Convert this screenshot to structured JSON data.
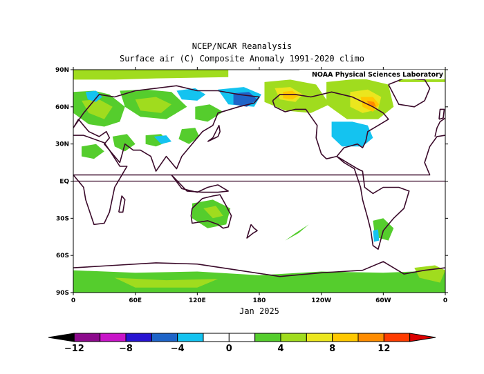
{
  "title_line1": "NCEP/NCAR Reanalysis",
  "title_line2": "Surface air (C) Composite Anomaly 1991-2020 climo",
  "credit": "NOAA Physical Sciences Laboratory",
  "time_label": "Jan 2025",
  "lat_ticks": [
    {
      "value": 90,
      "label": "90N"
    },
    {
      "value": 60,
      "label": "60N"
    },
    {
      "value": 30,
      "label": "30N"
    },
    {
      "value": 0,
      "label": "EQ"
    },
    {
      "value": -30,
      "label": "30S"
    },
    {
      "value": -60,
      "label": "60S"
    },
    {
      "value": -90,
      "label": "90S"
    }
  ],
  "lon_ticks": [
    {
      "value": 0,
      "label": "0"
    },
    {
      "value": 60,
      "label": "60E"
    },
    {
      "value": 120,
      "label": "120E"
    },
    {
      "value": 180,
      "label": "180"
    },
    {
      "value": 240,
      "label": "120W"
    },
    {
      "value": 300,
      "label": "60W"
    },
    {
      "value": 360,
      "label": "0"
    }
  ],
  "colorbar": {
    "labels": [
      {
        "value": -12,
        "label": "−12"
      },
      {
        "value": -8,
        "label": "−8"
      },
      {
        "value": -4,
        "label": "−4"
      },
      {
        "value": 0,
        "label": "0"
      },
      {
        "value": 4,
        "label": "4"
      },
      {
        "value": 8,
        "label": "8"
      },
      {
        "value": 12,
        "label": "12"
      }
    ],
    "bins": [
      {
        "from": -14,
        "to": -12,
        "color": "#000000"
      },
      {
        "from": -12,
        "to": -10,
        "color": "#8c0a8c"
      },
      {
        "from": -10,
        "to": -8,
        "color": "#c814c8"
      },
      {
        "from": -8,
        "to": -6,
        "color": "#2814d2"
      },
      {
        "from": -6,
        "to": -4,
        "color": "#1e64c8"
      },
      {
        "from": -4,
        "to": -2,
        "color": "#14c3f0"
      },
      {
        "from": -2,
        "to": 0,
        "color": "#ffffff"
      },
      {
        "from": 0,
        "to": 2,
        "color": "#ffffff"
      },
      {
        "from": 2,
        "to": 4,
        "color": "#55cd2d"
      },
      {
        "from": 4,
        "to": 6,
        "color": "#a0dc1e"
      },
      {
        "from": 6,
        "to": 8,
        "color": "#ebe61e"
      },
      {
        "from": 8,
        "to": 10,
        "color": "#ffc800"
      },
      {
        "from": 10,
        "to": 12,
        "color": "#ff8c00"
      },
      {
        "from": 12,
        "to": 14,
        "color": "#ff3c00"
      },
      {
        "from": 14,
        "to": 16,
        "color": "#dc0000"
      }
    ],
    "range": [
      -14,
      16
    ]
  },
  "anomaly_regions": [
    {
      "name": "arctic-band-europe",
      "lon": [
        0,
        40,
        80,
        150,
        150,
        80,
        40,
        0
      ],
      "lat": [
        90,
        90,
        90,
        90,
        84,
        83,
        82,
        82
      ],
      "value": 5
    },
    {
      "name": "arctic-band-west",
      "lon": [
        315,
        360,
        360,
        315
      ],
      "lat": [
        90,
        90,
        80,
        80
      ],
      "value": 5
    },
    {
      "name": "europe-warm",
      "lon": [
        0,
        20,
        35,
        50,
        45,
        30,
        15,
        0
      ],
      "lat": [
        72,
        73,
        70,
        60,
        48,
        44,
        46,
        55
      ],
      "value": 3
    },
    {
      "name": "europe-warm-core",
      "lon": [
        8,
        25,
        38,
        30,
        15
      ],
      "lat": [
        65,
        66,
        60,
        50,
        55
      ],
      "value": 5
    },
    {
      "name": "scandinavia-cold",
      "lon": [
        12,
        22,
        28,
        22,
        14
      ],
      "lat": [
        72,
        73,
        68,
        64,
        66
      ],
      "value": -3
    },
    {
      "name": "russia-warm",
      "lon": [
        45,
        70,
        95,
        110,
        90,
        65,
        50
      ],
      "lat": [
        73,
        74,
        72,
        60,
        50,
        52,
        60
      ],
      "value": 3
    },
    {
      "name": "russia-warm-core",
      "lon": [
        60,
        80,
        95,
        85,
        65
      ],
      "lat": [
        66,
        68,
        62,
        55,
        57
      ],
      "value": 5
    },
    {
      "name": "siberia-cold",
      "lon": [
        100,
        118,
        128,
        120,
        105
      ],
      "lat": [
        73,
        75,
        70,
        65,
        66
      ],
      "value": -3
    },
    {
      "name": "mideast-warm",
      "lon": [
        38,
        52,
        60,
        50,
        40
      ],
      "lat": [
        36,
        38,
        30,
        24,
        28
      ],
      "value": 3
    },
    {
      "name": "himalaya-warm",
      "lon": [
        70,
        85,
        92,
        80,
        70
      ],
      "lat": [
        37,
        38,
        32,
        28,
        30
      ],
      "value": 3
    },
    {
      "name": "tibet-cold",
      "lon": [
        78,
        90,
        95,
        85
      ],
      "lat": [
        36,
        37,
        32,
        30
      ],
      "value": -3
    },
    {
      "name": "china-warm",
      "lon": [
        105,
        118,
        122,
        112,
        102
      ],
      "lat": [
        42,
        43,
        36,
        30,
        34
      ],
      "value": 3
    },
    {
      "name": "chukotka-cold",
      "lon": [
        140,
        165,
        182,
        175,
        150
      ],
      "lat": [
        74,
        76,
        70,
        60,
        62
      ],
      "value": -3
    },
    {
      "name": "chukotka-cold-core",
      "lon": [
        155,
        170,
        178,
        168,
        155
      ],
      "lat": [
        71,
        72,
        66,
        60,
        62
      ],
      "value": -5
    },
    {
      "name": "kamchatka-warm",
      "lon": [
        118,
        132,
        145,
        130,
        118
      ],
      "lat": [
        60,
        62,
        56,
        48,
        50
      ],
      "value": 3
    },
    {
      "name": "alaska-warm",
      "lon": [
        185,
        210,
        235,
        248,
        230,
        205,
        185
      ],
      "lat": [
        80,
        82,
        78,
        62,
        55,
        57,
        64
      ],
      "value": 5
    },
    {
      "name": "alaska-warm-core",
      "lon": [
        195,
        210,
        222,
        215,
        200
      ],
      "lat": [
        75,
        76,
        70,
        64,
        66
      ],
      "value": 7
    },
    {
      "name": "alaska-hot-core",
      "lon": [
        203,
        212,
        218,
        212,
        203
      ],
      "lat": [
        72,
        73,
        69,
        66,
        67
      ],
      "value": 9
    },
    {
      "name": "canada-warm",
      "lon": [
        245,
        280,
        305,
        310,
        295,
        265,
        245
      ],
      "lat": [
        80,
        83,
        78,
        60,
        50,
        50,
        62
      ],
      "value": 5
    },
    {
      "name": "canada-warm-core",
      "lon": [
        268,
        285,
        298,
        295,
        280,
        268
      ],
      "lat": [
        72,
        74,
        68,
        58,
        55,
        60
      ],
      "value": 7
    },
    {
      "name": "hudson-hot",
      "lon": [
        278,
        290,
        296,
        290,
        280
      ],
      "lat": [
        68,
        68,
        62,
        56,
        60
      ],
      "value": 9
    },
    {
      "name": "hudson-hot-core",
      "lon": [
        284,
        291,
        293,
        287
      ],
      "lat": [
        65,
        64,
        60,
        61
      ],
      "value": 11
    },
    {
      "name": "us-cold",
      "lon": [
        250,
        270,
        285,
        290,
        280,
        260,
        250
      ],
      "lat": [
        48,
        48,
        45,
        35,
        28,
        28,
        36
      ],
      "value": -3
    },
    {
      "name": "africa-warm",
      "lon": [
        8,
        22,
        30,
        20,
        8
      ],
      "lat": [
        28,
        30,
        24,
        18,
        20
      ],
      "value": 3
    },
    {
      "name": "australia-warm",
      "lon": [
        115,
        135,
        152,
        148,
        130,
        115
      ],
      "lat": [
        -18,
        -15,
        -22,
        -35,
        -38,
        -30
      ],
      "value": 3
    },
    {
      "name": "australia-warm-core",
      "lon": [
        126,
        138,
        145,
        135
      ],
      "lat": [
        -22,
        -20,
        -28,
        -30
      ],
      "value": 5
    },
    {
      "name": "pacific-warm",
      "lon": [
        205,
        215,
        228,
        218
      ],
      "lat": [
        -48,
        -42,
        -35,
        -42
      ],
      "value": 3
    },
    {
      "name": "southamerica-warm",
      "lon": [
        290,
        300,
        310,
        305,
        292
      ],
      "lat": [
        -32,
        -30,
        -38,
        -48,
        -45
      ],
      "value": 3
    },
    {
      "name": "patagonia-cold",
      "lon": [
        290,
        295,
        296,
        291
      ],
      "lat": [
        -40,
        -39,
        -48,
        -49
      ],
      "value": -3
    },
    {
      "name": "antarctic-warm",
      "lon": [
        0,
        60,
        120,
        180,
        240,
        300,
        360,
        360,
        0
      ],
      "lat": [
        -72,
        -74,
        -73,
        -76,
        -73,
        -74,
        -72,
        -90,
        -90
      ],
      "value": 3
    },
    {
      "name": "antarctic-warm-core",
      "lon": [
        40,
        90,
        140,
        120,
        60
      ],
      "lat": [
        -78,
        -80,
        -79,
        -86,
        -86
      ],
      "value": 5
    },
    {
      "name": "weddell-warm",
      "lon": [
        330,
        350,
        360,
        355,
        335
      ],
      "lat": [
        -70,
        -68,
        -72,
        -82,
        -78
      ],
      "value": 5
    }
  ],
  "land_outlines": [
    {
      "name": "eurasia",
      "lon": [
        0,
        10,
        25,
        40,
        60,
        80,
        100,
        120,
        140,
        160,
        180,
        175,
        160,
        140,
        135,
        125,
        120,
        110,
        105,
        100,
        95,
        90,
        80,
        75,
        65,
        58,
        50,
        45,
        40,
        30,
        35,
        32,
        25,
        15,
        10,
        5,
        0
      ],
      "lat": [
        43,
        55,
        70,
        68,
        73,
        75,
        77,
        73,
        73,
        70,
        68,
        63,
        60,
        55,
        45,
        40,
        35,
        25,
        20,
        10,
        15,
        20,
        8,
        20,
        25,
        25,
        30,
        15,
        20,
        30,
        35,
        40,
        36,
        40,
        45,
        50,
        43
      ]
    },
    {
      "name": "europe-west",
      "lon": [
        350,
        352,
        355,
        360
      ],
      "lat": [
        36,
        43,
        48,
        51
      ]
    },
    {
      "name": "africa",
      "lon": [
        0,
        10,
        30,
        35,
        45,
        52,
        40,
        35,
        30,
        20,
        18,
        12,
        10,
        0,
        345,
        340,
        345,
        352,
        360
      ],
      "lat": [
        37,
        37,
        31,
        25,
        12,
        12,
        -5,
        -25,
        -34,
        -35,
        -30,
        -15,
        -5,
        5,
        5,
        15,
        28,
        36,
        37
      ]
    },
    {
      "name": "north-america",
      "lon": [
        193,
        200,
        215,
        230,
        250,
        270,
        290,
        300,
        305,
        295,
        285,
        283,
        280,
        275,
        262,
        255,
        245,
        240,
        235,
        236,
        225,
        215,
        205,
        195,
        193
      ],
      "lat": [
        65,
        70,
        70,
        68,
        72,
        68,
        60,
        55,
        50,
        45,
        40,
        32,
        27,
        30,
        27,
        20,
        18,
        22,
        35,
        45,
        58,
        58,
        56,
        60,
        65
      ]
    },
    {
      "name": "central-south-america",
      "lon": [
        255,
        265,
        275,
        280,
        282,
        290,
        300,
        315,
        325,
        320,
        310,
        300,
        295,
        290,
        288,
        285,
        280,
        278,
        272,
        262,
        255
      ],
      "lat": [
        20,
        15,
        10,
        8,
        -5,
        -10,
        -5,
        -5,
        -8,
        -22,
        -30,
        -40,
        -55,
        -52,
        -40,
        -30,
        -15,
        -5,
        10,
        15,
        20
      ]
    },
    {
      "name": "greenland",
      "lon": [
        305,
        320,
        340,
        345,
        340,
        330,
        315,
        305
      ],
      "lat": [
        78,
        83,
        82,
        75,
        65,
        60,
        62,
        78
      ]
    },
    {
      "name": "australia",
      "lon": [
        115,
        125,
        135,
        142,
        148,
        153,
        150,
        145,
        140,
        130,
        115,
        114,
        115
      ],
      "lat": [
        -22,
        -14,
        -12,
        -11,
        -20,
        -28,
        -37,
        -38,
        -35,
        -32,
        -34,
        -28,
        -22
      ]
    },
    {
      "name": "new-zealand",
      "lon": [
        172,
        175,
        178,
        174,
        168,
        172
      ],
      "lat": [
        -35,
        -38,
        -40,
        -42,
        -46,
        -35
      ]
    },
    {
      "name": "antarctica",
      "lon": [
        0,
        40,
        80,
        120,
        160,
        200,
        240,
        280,
        300,
        320,
        340,
        360
      ],
      "lat": [
        -70,
        -68,
        -66,
        -67,
        -72,
        -77,
        -74,
        -72,
        -65,
        -75,
        -72,
        -70
      ]
    },
    {
      "name": "japan",
      "lon": [
        130,
        135,
        140,
        142,
        141,
        135,
        130
      ],
      "lat": [
        32,
        34,
        36,
        40,
        45,
        35,
        32
      ]
    },
    {
      "name": "uk",
      "lon": [
        354,
        358,
        359,
        355,
        354
      ],
      "lat": [
        50,
        51,
        58,
        58,
        50
      ]
    },
    {
      "name": "madagascar",
      "lon": [
        44,
        48,
        50,
        47,
        44
      ],
      "lat": [
        -25,
        -25,
        -15,
        -12,
        -25
      ]
    },
    {
      "name": "indonesia",
      "lon": [
        95,
        105,
        115,
        120,
        130,
        140,
        150,
        140,
        125,
        110,
        95
      ],
      "lat": [
        5,
        -6,
        -8,
        -9,
        -5,
        -3,
        -8,
        -9,
        -9,
        -8,
        5
      ]
    }
  ]
}
